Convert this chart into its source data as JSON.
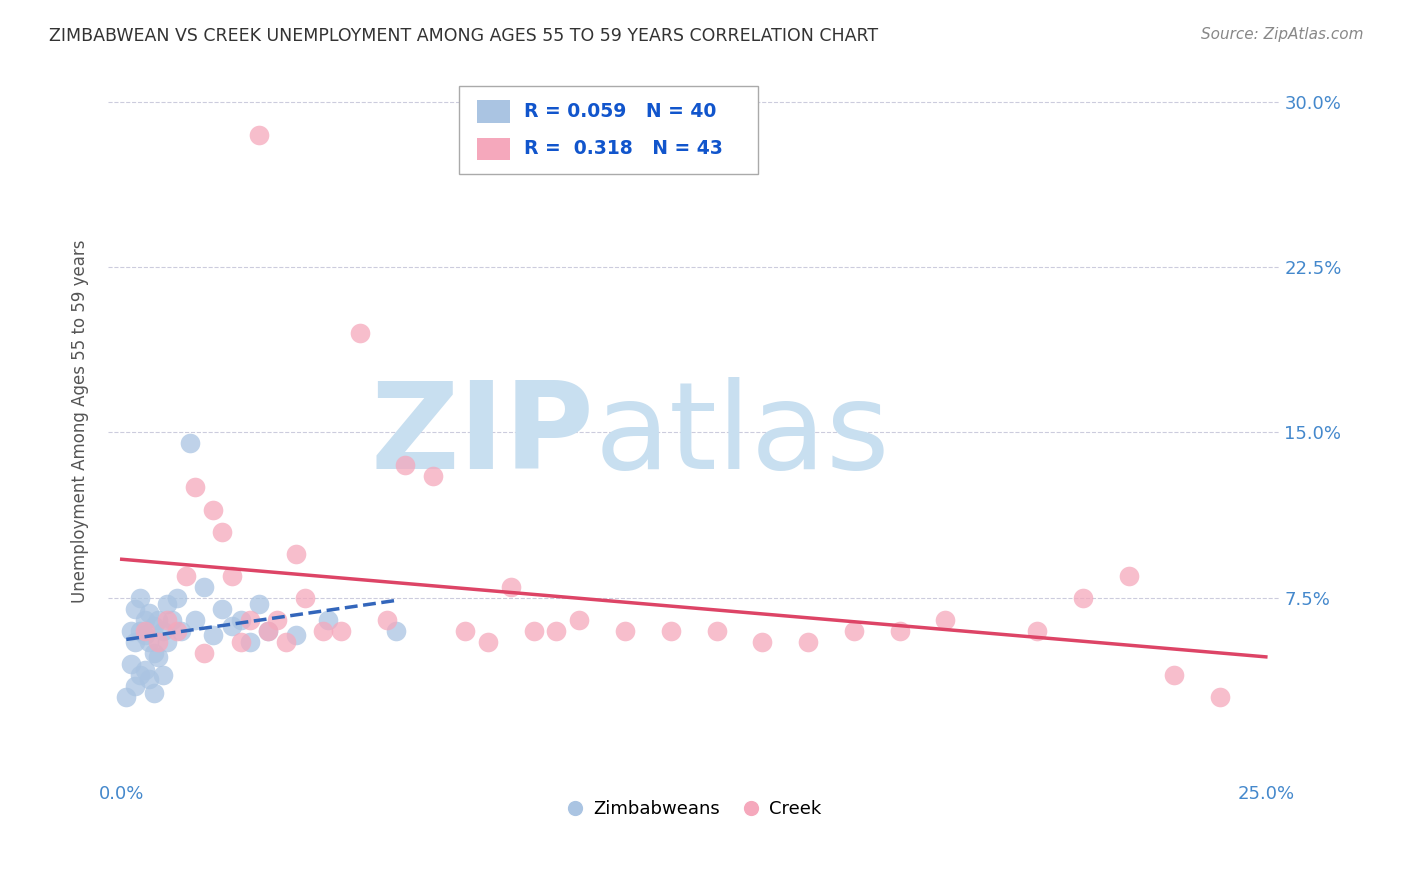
{
  "title": "ZIMBABWEAN VS CREEK UNEMPLOYMENT AMONG AGES 55 TO 59 YEARS CORRELATION CHART",
  "source": "Source: ZipAtlas.com",
  "ylabel": "Unemployment Among Ages 55 to 59 years",
  "xlim": [
    -0.003,
    0.253
  ],
  "ylim": [
    -0.005,
    0.315
  ],
  "xticks": [
    0.0,
    0.05,
    0.1,
    0.15,
    0.2,
    0.25
  ],
  "xtick_labels": [
    "0.0%",
    "",
    "",
    "",
    "",
    "25.0%"
  ],
  "yticks": [
    0.0,
    0.075,
    0.15,
    0.225,
    0.3
  ],
  "ytick_labels_right": [
    "",
    "7.5%",
    "15.0%",
    "22.5%",
    "30.0%"
  ],
  "grid_yticks": [
    0.075,
    0.15,
    0.225,
    0.3
  ],
  "zimbabwean_color": "#aac4e2",
  "creek_color": "#f5a8bc",
  "zimbabwean_line_color": "#3366bb",
  "creek_line_color": "#dd4466",
  "R_zimbabwean": 0.059,
  "N_zimbabwean": 40,
  "R_creek": 0.318,
  "N_creek": 43,
  "watermark_zip": "ZIP",
  "watermark_atlas": "atlas",
  "watermark_color_zip": "#c8dff0",
  "watermark_color_atlas": "#c8dff0",
  "zimbabwean_x": [
    0.001,
    0.002,
    0.002,
    0.003,
    0.003,
    0.003,
    0.004,
    0.004,
    0.004,
    0.005,
    0.005,
    0.005,
    0.006,
    0.006,
    0.006,
    0.007,
    0.007,
    0.007,
    0.008,
    0.008,
    0.009,
    0.009,
    0.01,
    0.01,
    0.011,
    0.012,
    0.013,
    0.015,
    0.016,
    0.018,
    0.02,
    0.022,
    0.024,
    0.026,
    0.028,
    0.03,
    0.032,
    0.038,
    0.045,
    0.06
  ],
  "zimbabwean_y": [
    0.03,
    0.045,
    0.06,
    0.035,
    0.055,
    0.07,
    0.04,
    0.06,
    0.075,
    0.042,
    0.058,
    0.065,
    0.038,
    0.055,
    0.068,
    0.032,
    0.05,
    0.062,
    0.048,
    0.065,
    0.04,
    0.06,
    0.055,
    0.072,
    0.065,
    0.075,
    0.06,
    0.145,
    0.065,
    0.08,
    0.058,
    0.07,
    0.062,
    0.065,
    0.055,
    0.072,
    0.06,
    0.058,
    0.065,
    0.06
  ],
  "creek_x": [
    0.005,
    0.008,
    0.01,
    0.012,
    0.014,
    0.016,
    0.018,
    0.02,
    0.022,
    0.024,
    0.026,
    0.028,
    0.03,
    0.032,
    0.034,
    0.036,
    0.038,
    0.04,
    0.044,
    0.048,
    0.052,
    0.058,
    0.062,
    0.068,
    0.075,
    0.08,
    0.085,
    0.09,
    0.095,
    0.1,
    0.11,
    0.12,
    0.13,
    0.14,
    0.15,
    0.16,
    0.17,
    0.18,
    0.2,
    0.21,
    0.22,
    0.23,
    0.24
  ],
  "creek_y": [
    0.06,
    0.055,
    0.065,
    0.06,
    0.085,
    0.125,
    0.05,
    0.115,
    0.105,
    0.085,
    0.055,
    0.065,
    0.285,
    0.06,
    0.065,
    0.055,
    0.095,
    0.075,
    0.06,
    0.06,
    0.195,
    0.065,
    0.135,
    0.13,
    0.06,
    0.055,
    0.08,
    0.06,
    0.06,
    0.065,
    0.06,
    0.06,
    0.06,
    0.055,
    0.055,
    0.06,
    0.06,
    0.065,
    0.06,
    0.075,
    0.085,
    0.04,
    0.03
  ]
}
